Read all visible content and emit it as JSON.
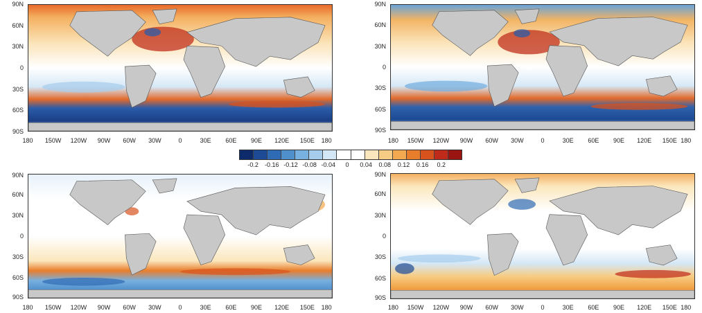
{
  "figure": {
    "latitude_labels": [
      "90N",
      "60N",
      "30N",
      "0",
      "30S",
      "60S",
      "90S"
    ],
    "longitude_labels": [
      "180",
      "150W",
      "120W",
      "90W",
      "60W",
      "30W",
      "0",
      "30E",
      "60E",
      "90E",
      "120E",
      "150E",
      "180"
    ],
    "panels": [
      {
        "id": "a",
        "pattern": "warm-north-cold-south",
        "land_color": "#c8c8c8"
      },
      {
        "id": "b",
        "pattern": "warm-north-cold-south",
        "land_color": "#c8c8c8"
      },
      {
        "id": "c",
        "pattern": "weak-mixed",
        "land_color": "#c8c8c8"
      },
      {
        "id": "d",
        "pattern": "warm-south",
        "land_color": "#c8c8c8"
      }
    ]
  },
  "colorbar": {
    "labels": [
      "-0.2",
      "-0.16",
      "-0.12",
      "-0.08",
      "-0.04",
      "0",
      "0.04",
      "0.08",
      "0.12",
      "0.16",
      "0.2"
    ],
    "colors": [
      "#0d2a6b",
      "#1d4a94",
      "#2f6bb5",
      "#4f8fcc",
      "#78b0df",
      "#a6cdec",
      "#d4e7f6",
      "#ffffff",
      "#ffffff",
      "#fbe7bd",
      "#f7cd85",
      "#f2a94f",
      "#e87e2c",
      "#d8521e",
      "#bf2a1a",
      "#9a1512"
    ]
  }
}
